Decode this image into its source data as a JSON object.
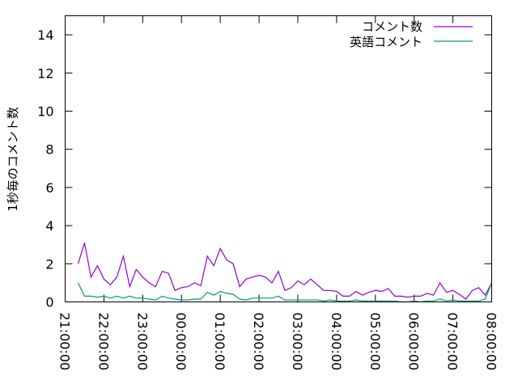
{
  "chart_data": {
    "type": "line",
    "title": "",
    "xlabel": "",
    "ylabel": "1秒毎のコメント数",
    "ylim": [
      0,
      15
    ],
    "yticks": [
      "0",
      "2",
      "4",
      "6",
      "8",
      "10",
      "12",
      "14"
    ],
    "xlim": [
      "21:00:00",
      "08:00:00"
    ],
    "xticks": [
      "21:00:00",
      "22:00:00",
      "23:00:00",
      "00:00:00",
      "01:00:00",
      "02:00:00",
      "03:00:00",
      "04:00:00",
      "05:00:00",
      "06:00:00",
      "07:00:00",
      "08:00:00"
    ],
    "grid": false,
    "legend_position": "top-right",
    "x": [
      "21:20",
      "21:30",
      "21:40",
      "21:50",
      "22:00",
      "22:10",
      "22:20",
      "22:30",
      "22:40",
      "22:50",
      "23:00",
      "23:10",
      "23:20",
      "23:30",
      "23:40",
      "23:50",
      "00:00",
      "00:10",
      "00:20",
      "00:30",
      "00:40",
      "00:50",
      "01:00",
      "01:10",
      "01:20",
      "01:30",
      "01:40",
      "01:50",
      "02:00",
      "02:10",
      "02:20",
      "02:30",
      "02:40",
      "02:50",
      "03:00",
      "03:10",
      "03:20",
      "03:30",
      "03:40",
      "03:50",
      "04:00",
      "04:10",
      "04:20",
      "04:30",
      "04:40",
      "04:50",
      "05:00",
      "05:10",
      "05:20",
      "05:30",
      "05:40",
      "05:50",
      "06:00",
      "06:10",
      "06:20",
      "06:30",
      "06:40",
      "06:50",
      "07:00",
      "07:10",
      "07:20",
      "07:30",
      "07:40",
      "07:50",
      "08:00"
    ],
    "series": [
      {
        "name": "コメント数",
        "color": "#9400d3",
        "values": [
          2.0,
          3.1,
          1.3,
          1.9,
          1.2,
          0.9,
          1.3,
          2.4,
          0.8,
          1.7,
          1.3,
          1.0,
          0.8,
          1.6,
          1.5,
          0.6,
          0.75,
          0.8,
          1.0,
          0.85,
          2.4,
          1.9,
          2.8,
          2.2,
          2.0,
          0.8,
          1.2,
          1.3,
          1.4,
          1.3,
          1.0,
          1.6,
          0.6,
          0.75,
          1.1,
          0.9,
          1.2,
          0.9,
          0.6,
          0.6,
          0.55,
          0.3,
          0.3,
          0.55,
          0.35,
          0.5,
          0.6,
          0.55,
          0.7,
          0.3,
          0.3,
          0.25,
          0.3,
          0.3,
          0.45,
          0.35,
          1.0,
          0.5,
          0.6,
          0.4,
          0.15,
          0.6,
          0.75,
          0.35,
          1.0
        ]
      },
      {
        "name": "英語コメント",
        "color": "#009e73",
        "values": [
          1.0,
          0.3,
          0.3,
          0.25,
          0.3,
          0.2,
          0.3,
          0.2,
          0.3,
          0.2,
          0.2,
          0.15,
          0.1,
          0.3,
          0.2,
          0.15,
          0.1,
          0.1,
          0.15,
          0.15,
          0.5,
          0.35,
          0.55,
          0.45,
          0.4,
          0.15,
          0.1,
          0.2,
          0.2,
          0.2,
          0.2,
          0.3,
          0.1,
          0.1,
          0.1,
          0.1,
          0.1,
          0.1,
          0.05,
          0.1,
          0.05,
          0.05,
          0.05,
          0.1,
          0.05,
          0.05,
          0.05,
          0.05,
          0.05,
          0.05,
          0.0,
          0.0,
          0.05,
          0.0,
          0.05,
          0.05,
          0.15,
          0.05,
          0.1,
          0.05,
          0.05,
          0.05,
          0.05,
          0.15,
          1.0
        ]
      }
    ]
  }
}
